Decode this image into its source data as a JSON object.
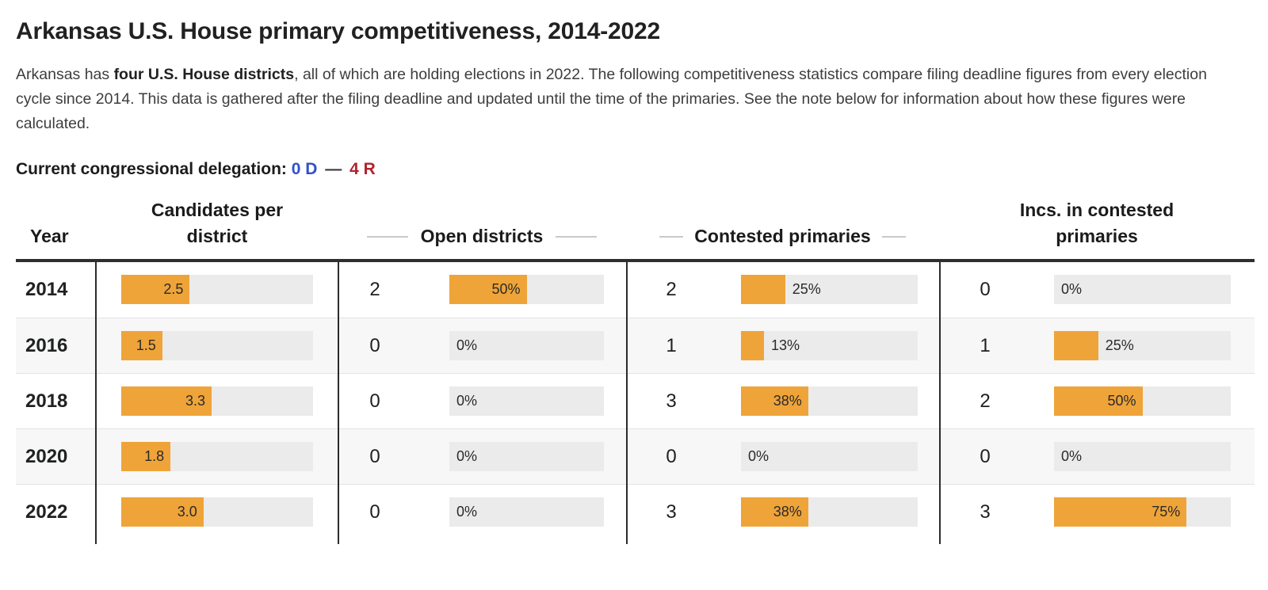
{
  "page": {
    "title": "Arkansas U.S. House primary competitiveness, 2014-2022",
    "intro": {
      "pre": "Arkansas has ",
      "bold": "four U.S. House districts",
      "post": ", all of which are holding elections in 2022. The following competitiveness statistics compare filing deadline figures from every election cycle since 2014. This data is gathered after the filing deadline and updated until the time of the primaries. See the note below for information about how these figures were calculated."
    },
    "delegation": {
      "label": "Current congressional delegation:",
      "dem": "0 D",
      "separator": "—",
      "rep": "4 R"
    }
  },
  "colors": {
    "bar_orange": "#efa439",
    "bar_track": "#ebebeb",
    "row_stripe": "#f7f7f7",
    "dem_blue": "#3350c8",
    "rep_red": "#b3222e",
    "table_rule": "#2e2e2e",
    "header_dash": "#c9c9c9"
  },
  "chart_data": {
    "type": "bar",
    "title": "Arkansas U.S. House primary competitiveness, 2014-2022",
    "orientation": "horizontal",
    "columns": {
      "year": "Year",
      "candidates": "Candidates per\ndistrict",
      "open": "Open districts",
      "contested": "Contested primaries",
      "incs": "Incs. in contested\nprimaries"
    },
    "candidates_axis_max": 7,
    "percent_axis_max": 100,
    "rows": [
      {
        "year": "2014",
        "candidates": {
          "value": 2.5,
          "label": "2.5",
          "pct": 35.7,
          "label_inside": true
        },
        "open": {
          "count": "2",
          "value": 50,
          "label": "50%",
          "pct": 50,
          "label_inside": true
        },
        "contested": {
          "count": "2",
          "value": 25,
          "label": "25%",
          "pct": 25,
          "label_inside": false
        },
        "incs": {
          "count": "0",
          "value": 0,
          "label": "0%",
          "pct": 0,
          "label_inside": false
        }
      },
      {
        "year": "2016",
        "candidates": {
          "value": 1.5,
          "label": "1.5",
          "pct": 21.4,
          "label_inside": true
        },
        "open": {
          "count": "0",
          "value": 0,
          "label": "0%",
          "pct": 0,
          "label_inside": false
        },
        "contested": {
          "count": "1",
          "value": 13,
          "label": "13%",
          "pct": 13,
          "label_inside": false
        },
        "incs": {
          "count": "1",
          "value": 25,
          "label": "25%",
          "pct": 25,
          "label_inside": false
        }
      },
      {
        "year": "2018",
        "candidates": {
          "value": 3.3,
          "label": "3.3",
          "pct": 47.1,
          "label_inside": true
        },
        "open": {
          "count": "0",
          "value": 0,
          "label": "0%",
          "pct": 0,
          "label_inside": false
        },
        "contested": {
          "count": "3",
          "value": 38,
          "label": "38%",
          "pct": 38,
          "label_inside": true
        },
        "incs": {
          "count": "2",
          "value": 50,
          "label": "50%",
          "pct": 50,
          "label_inside": true
        }
      },
      {
        "year": "2020",
        "candidates": {
          "value": 1.8,
          "label": "1.8",
          "pct": 25.7,
          "label_inside": true
        },
        "open": {
          "count": "0",
          "value": 0,
          "label": "0%",
          "pct": 0,
          "label_inside": false
        },
        "contested": {
          "count": "0",
          "value": 0,
          "label": "0%",
          "pct": 0,
          "label_inside": false
        },
        "incs": {
          "count": "0",
          "value": 0,
          "label": "0%",
          "pct": 0,
          "label_inside": false
        }
      },
      {
        "year": "2022",
        "candidates": {
          "value": 3.0,
          "label": "3.0",
          "pct": 42.9,
          "label_inside": true
        },
        "open": {
          "count": "0",
          "value": 0,
          "label": "0%",
          "pct": 0,
          "label_inside": false
        },
        "contested": {
          "count": "3",
          "value": 38,
          "label": "38%",
          "pct": 38,
          "label_inside": true
        },
        "incs": {
          "count": "3",
          "value": 75,
          "label": "75%",
          "pct": 75,
          "label_inside": true
        }
      }
    ]
  }
}
